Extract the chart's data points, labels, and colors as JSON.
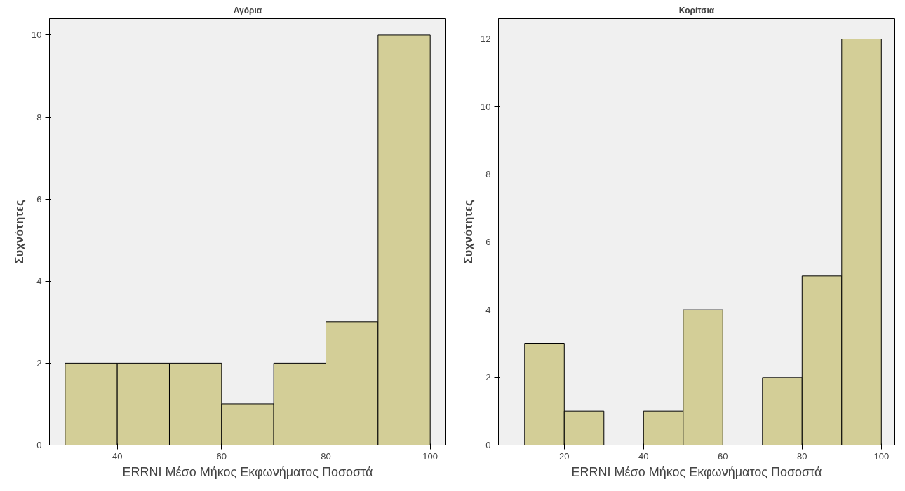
{
  "chart_data": [
    {
      "type": "histogram",
      "title": "Αγόρια",
      "xlabel": "ERRNI Μέσο Μήκος Εκφωνήματος Ποσοστά",
      "ylabel": "Συχνότητες",
      "color": "#d3ce97",
      "bins": [
        30,
        40,
        50,
        60,
        70,
        80,
        90,
        100
      ],
      "values": [
        2,
        2,
        2,
        1,
        2,
        3,
        10
      ],
      "xlim": [
        27,
        103
      ],
      "ylim": [
        0,
        10.4
      ],
      "xticks": [
        40,
        60,
        80,
        100
      ],
      "yticks": [
        0,
        2,
        4,
        6,
        8,
        10
      ],
      "grid": false
    },
    {
      "type": "histogram",
      "title": "Κορίτσια",
      "xlabel": "ERRNI Μέσο Μήκος Εκφωνήματος Ποσοστά",
      "ylabel": "Συχνότητες",
      "color": "#d3ce97",
      "bins": [
        10,
        20,
        30,
        40,
        50,
        60,
        70,
        80,
        90,
        100
      ],
      "values": [
        3,
        1,
        0,
        1,
        4,
        0,
        2,
        5,
        12
      ],
      "xlim": [
        3.4,
        103.4
      ],
      "ylim": [
        0,
        12.6
      ],
      "xticks": [
        20,
        40,
        60,
        80,
        100
      ],
      "yticks": [
        0,
        2,
        4,
        6,
        8,
        10,
        12
      ],
      "grid": false
    }
  ]
}
